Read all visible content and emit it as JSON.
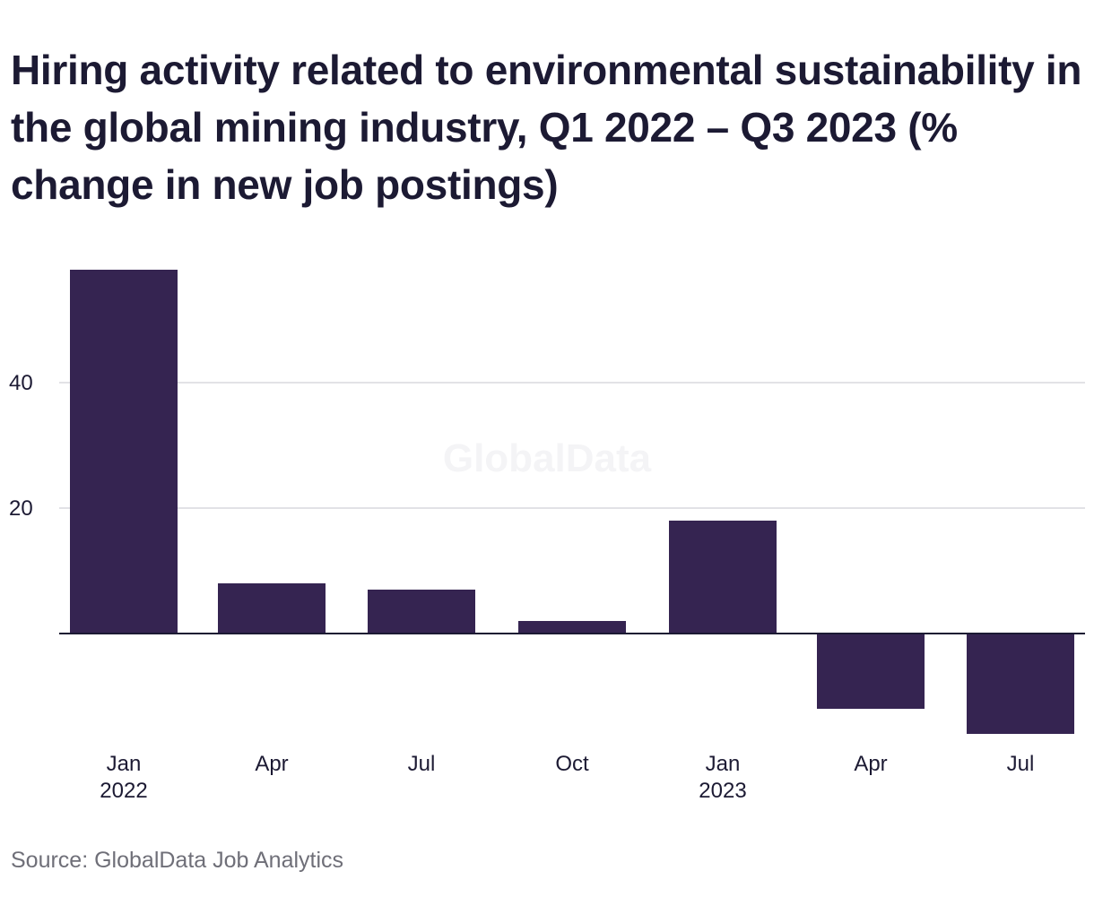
{
  "title": "Hiring activity related to environmental sustainability in the global mining industry, Q1 2022 – Q3 2023 (% change in new job postings)",
  "source": "Source: GlobalData Job Analytics",
  "watermark": "GlobalData",
  "colors": {
    "bar": "#352451",
    "grid": "#d9d9dd",
    "baseline": "#1c1a33",
    "text": "#1c1a33",
    "watermark": "#f4f4f6"
  },
  "chart_data": {
    "type": "bar",
    "categories": [
      "Jan 2022",
      "Apr 2022",
      "Jul 2022",
      "Oct 2022",
      "Jan 2023",
      "Apr 2023",
      "Jul 2023"
    ],
    "tick_labels": [
      {
        "line1": "Jan",
        "line2": "2022"
      },
      {
        "line1": "Apr",
        "line2": ""
      },
      {
        "line1": "Jul",
        "line2": ""
      },
      {
        "line1": "Oct",
        "line2": ""
      },
      {
        "line1": "Jan",
        "line2": "2023"
      },
      {
        "line1": "Apr",
        "line2": ""
      },
      {
        "line1": "Jul",
        "line2": ""
      }
    ],
    "values": [
      58,
      8,
      7,
      2,
      18,
      -12,
      -16
    ],
    "y_ticks": [
      20,
      40
    ],
    "ylim": [
      -16,
      58
    ],
    "grid": true,
    "legend": "none",
    "title": "Hiring activity related to environmental sustainability in the global mining industry, Q1 2022 – Q3 2023 (% change in new job postings)",
    "xlabel": "",
    "ylabel": ""
  }
}
